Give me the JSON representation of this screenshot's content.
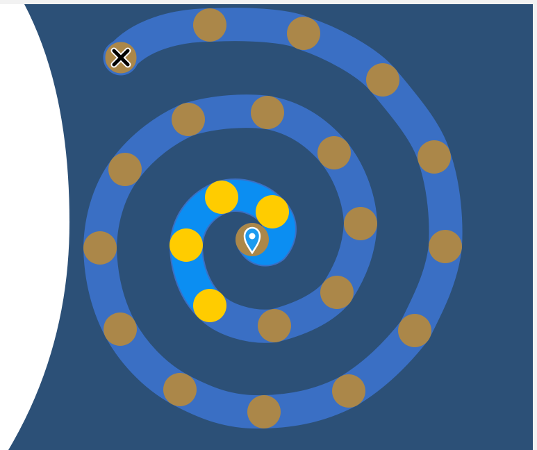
{
  "board": {
    "name": "spiral-level-map",
    "colors": {
      "background": "#2c5077",
      "outer_frame": "#ffffff",
      "path": "#3a6fc4",
      "path_completed": "#0b8ef2",
      "node_locked": "#ab8749",
      "node_completed": "#ffcc00",
      "current_marker": "#1d9bf0",
      "end_marker": "#000000"
    },
    "levels_total": 27,
    "levels_completed": 4,
    "current_level_icon": "map-pin-icon",
    "end_icon": "close-x-icon"
  }
}
